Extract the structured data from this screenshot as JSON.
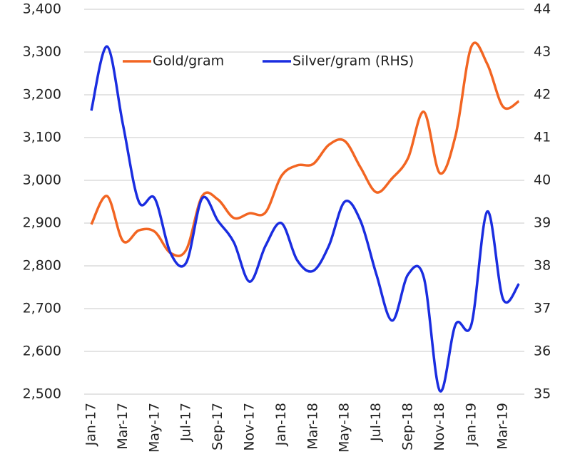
{
  "chart_data": {
    "type": "line",
    "categories": [
      "Jan-17",
      null,
      "Mar-17",
      null,
      "May-17",
      null,
      "Jul-17",
      null,
      "Sep-17",
      null,
      "Nov-17",
      null,
      "Jan-18",
      null,
      "Mar-18",
      null,
      "May-18",
      null,
      "Jul-18",
      null,
      "Sep-18",
      null,
      "Nov-18",
      null,
      "Jan-19",
      null,
      "Mar-19",
      null
    ],
    "series": [
      {
        "name": "Gold/gram",
        "color": "#f26522",
        "values": [
          2897,
          2963,
          2858,
          2883,
          2880,
          2830,
          2838,
          2963,
          2955,
          2912,
          2923,
          2925,
          3010,
          3035,
          3038,
          3083,
          3092,
          3030,
          2972,
          3005,
          3052,
          3160,
          3017,
          3105,
          3313,
          3272,
          3172,
          3185
        ]
      },
      {
        "name": "Silver/gram (RHS)",
        "color": "#1a2de0",
        "axis": "y2",
        "values": [
          41.63,
          43.13,
          41.3,
          39.5,
          39.58,
          38.3,
          38.08,
          39.58,
          39.05,
          38.55,
          37.63,
          38.47,
          39.0,
          38.13,
          37.88,
          38.47,
          39.5,
          39.05,
          37.8,
          36.72,
          37.8,
          37.72,
          35.08,
          36.63,
          36.63,
          39.27,
          37.22,
          37.58
        ]
      }
    ],
    "ylim": [
      2500,
      3400
    ],
    "yticks": [
      {
        "value": 2500,
        "label": "2,500"
      },
      {
        "value": 2600,
        "label": "2,600"
      },
      {
        "value": 2700,
        "label": "2,700"
      },
      {
        "value": 2800,
        "label": "2,800"
      },
      {
        "value": 2900,
        "label": "2,900"
      },
      {
        "value": 3000,
        "label": "3,000"
      },
      {
        "value": 3100,
        "label": "3,100"
      },
      {
        "value": 3200,
        "label": "3,200"
      },
      {
        "value": 3300,
        "label": "3,300"
      },
      {
        "value": 3400,
        "label": "3,400"
      }
    ],
    "y2lim": [
      35,
      44
    ],
    "y2ticks": [
      35,
      36,
      37,
      38,
      39,
      40,
      41,
      42,
      43,
      44
    ],
    "grid": true,
    "legend": "top"
  }
}
